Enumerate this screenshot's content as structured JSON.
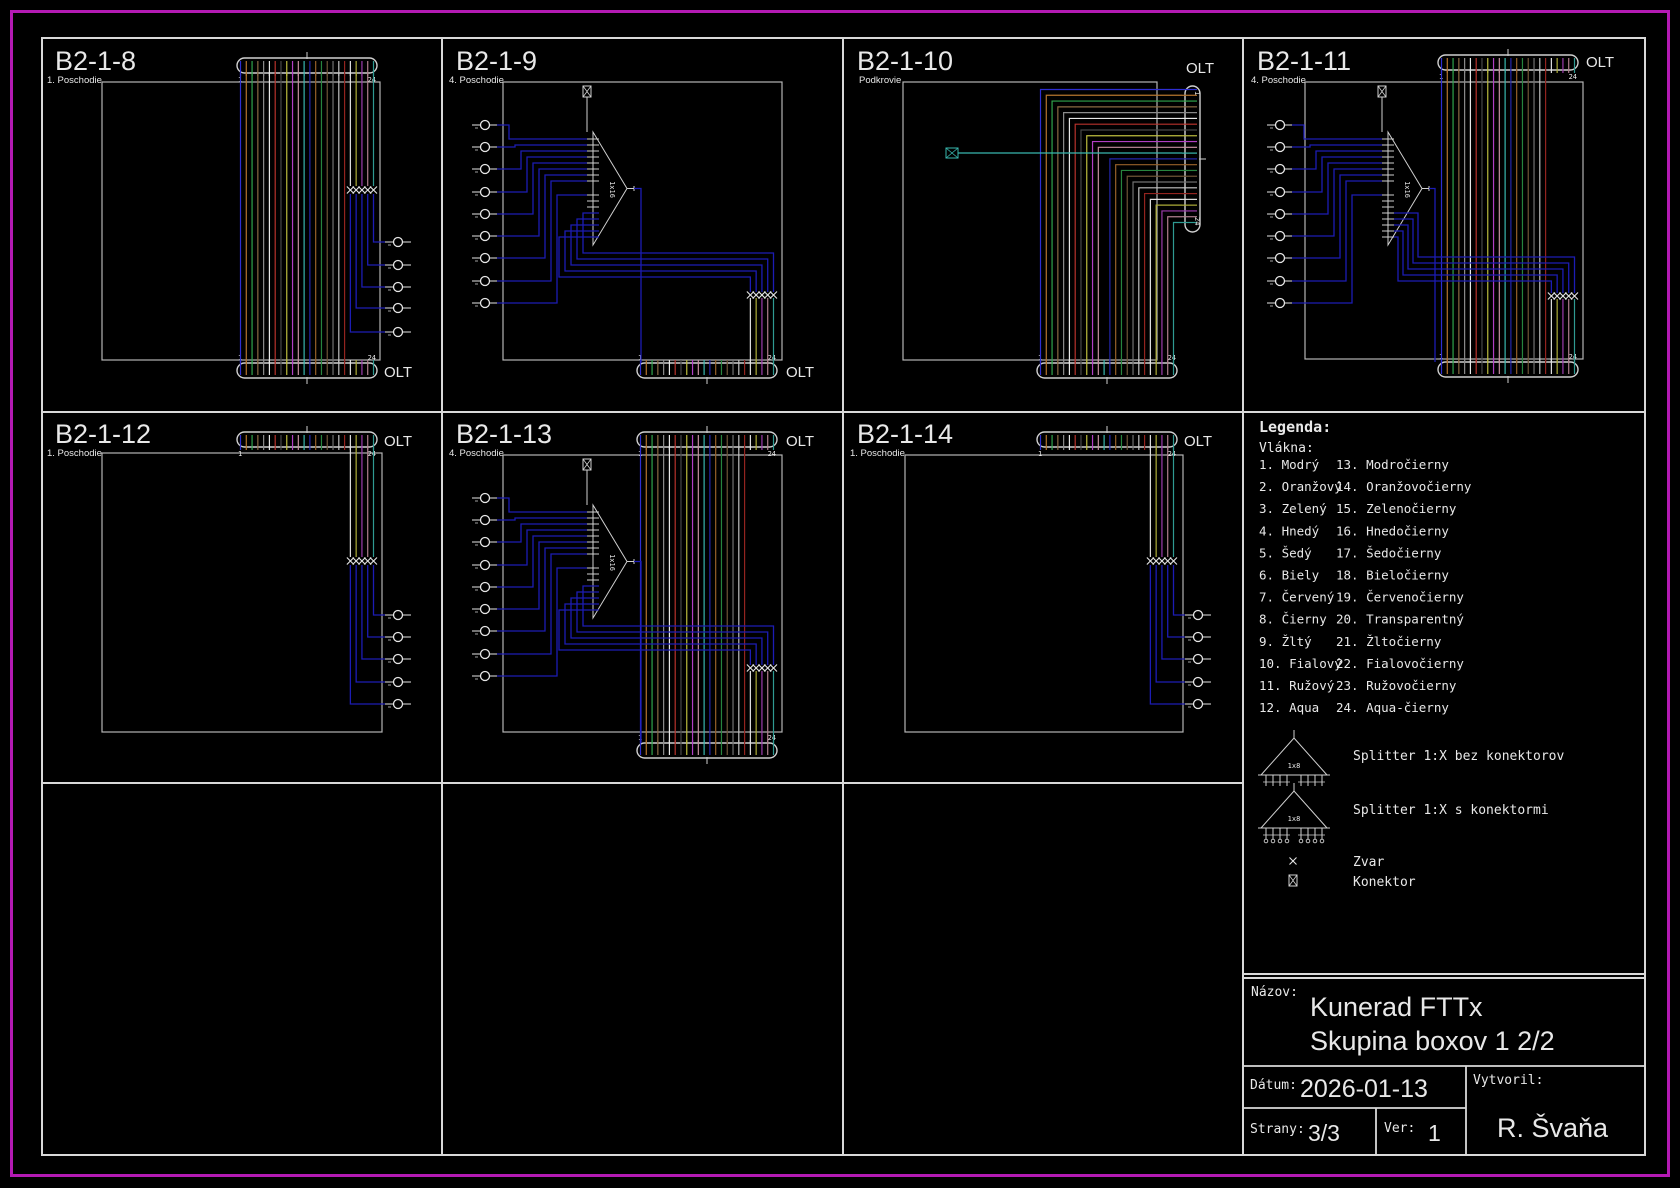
{
  "labels": {
    "olt": "OLT",
    "port_first": "1",
    "port_last": "24",
    "splitter_ratio_16": "1x16",
    "splitter_ratio_8": "1x8"
  },
  "panels": [
    {
      "id": "B2-1-8",
      "title": "B2-1-8",
      "subtitle": "1. Poschodie"
    },
    {
      "id": "B2-1-9",
      "title": "B2-1-9",
      "subtitle": "4. Poschodie"
    },
    {
      "id": "B2-1-10",
      "title": "B2-1-10",
      "subtitle": "Podkrovie"
    },
    {
      "id": "B2-1-11",
      "title": "B2-1-11",
      "subtitle": "4. Poschodie"
    },
    {
      "id": "B2-1-12",
      "title": "B2-1-12",
      "subtitle": "1. Poschodie"
    },
    {
      "id": "B2-1-13",
      "title": "B2-1-13",
      "subtitle": "4. Poschodie"
    },
    {
      "id": "B2-1-14",
      "title": "B2-1-14",
      "subtitle": "1. Poschodie"
    }
  ],
  "legend": {
    "title": "Legenda:",
    "fibers_title": "Vlákna:",
    "fibers": [
      {
        "text": "1. Modrý",
        "color": "#2e2ed2"
      },
      {
        "text": "2. Oranžový",
        "color": "#b5742e"
      },
      {
        "text": "3. Zelený",
        "color": "#2fa44c"
      },
      {
        "text": "4. Hnedý",
        "color": "#85704e"
      },
      {
        "text": "5. Šedý",
        "color": "#7f7f7f"
      },
      {
        "text": "6. Biely",
        "color": "#e6e6e6"
      },
      {
        "text": "7. Červený",
        "color": "#b8322c"
      },
      {
        "text": "8. Čierny",
        "color": "#dcdcdc"
      },
      {
        "text": "9. Žltý",
        "color": "#bdbd3e"
      },
      {
        "text": "10. Fialový",
        "color": "#b13fc4"
      },
      {
        "text": "11. Ružový",
        "color": "#c08e9d"
      },
      {
        "text": "12. Aqua",
        "color": "#38b7ae"
      },
      {
        "text": "13. Modročierny",
        "color": "#2e2ed2"
      },
      {
        "text": "14. Oranžovočierny",
        "color": "#d9d9d9"
      },
      {
        "text": "15. Zelenočierny",
        "color": "#2fa44c"
      },
      {
        "text": "16. Hnedočierny",
        "color": "#7d6a4c"
      },
      {
        "text": "17. Šedočierny",
        "color": "#9a9a9a"
      },
      {
        "text": "18. Bieločierny",
        "color": "#e0e0e0"
      },
      {
        "text": "19. Červenočierny",
        "color": "#b8322c"
      },
      {
        "text": "20. Transparentný",
        "color": "#e6e6e6"
      },
      {
        "text": "21. Žltočierny",
        "color": "#bdbd3e"
      },
      {
        "text": "22. Fialovočierny",
        "color": "#b13fc4"
      },
      {
        "text": "23. Ružovočierny",
        "color": "#bb8b9a"
      },
      {
        "text": "24. Aqua-čierny",
        "color": "#38b7ae"
      }
    ],
    "items": [
      {
        "label": "Splitter 1:X bez konektorov"
      },
      {
        "label": "Splitter 1:X s konektormi"
      },
      {
        "label": "Zvar"
      },
      {
        "label": "Konektor"
      }
    ]
  },
  "title_block": {
    "name_label": "Názov:",
    "name_line1": "Kunerad FTTx",
    "name_line2": "Skupina boxov 1 2/2",
    "date_label": "Dátum:",
    "date": "2026-01-13",
    "author_label": "Vytvoril:",
    "author": "R. Švaňa",
    "pages_label": "Strany:",
    "pages": "3/3",
    "version_label": "Ver:",
    "version": "1"
  },
  "fiber_colors": [
    "#2e2ed2",
    "#b5742e",
    "#2fa44c",
    "#8a6a42",
    "#8c8c8c",
    "#e6e6e6",
    "#b8322c",
    "#474747",
    "#bdbd3e",
    "#b13fc4",
    "#c58fa0",
    "#38b7ae",
    "#2326aa",
    "#96602a",
    "#27843e",
    "#6e5536",
    "#707070",
    "#c2c2c2",
    "#93241f",
    "#e2e2e2",
    "#aeae38",
    "#9c3bab",
    "#b07f8e",
    "#2f9a92"
  ],
  "colors": {
    "background": "#000000",
    "border_magenta": "#b31ab3",
    "grid_line": "#d9d9d9",
    "room_line": "#b5b5b5",
    "bar_line": "#d0d0d0",
    "text_primary": "#e8e8e8",
    "text_secondary": "#c4c4c4",
    "drop_blue": "#1c1cb4",
    "splice_white": "#e6e6e6"
  }
}
